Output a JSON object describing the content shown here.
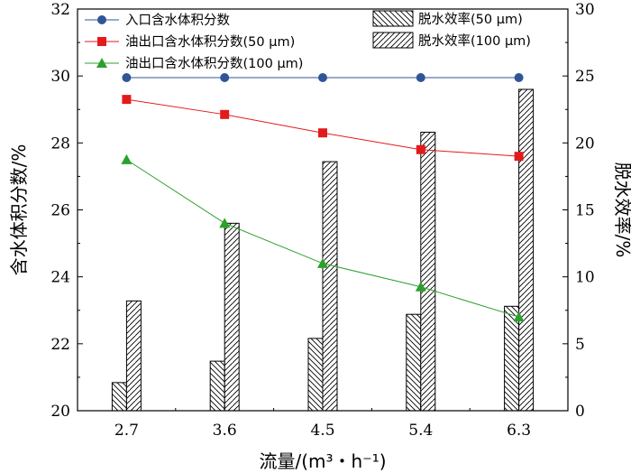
{
  "chart_data": {
    "type": "bar",
    "categories": [
      "2.7",
      "3.6",
      "4.5",
      "5.4",
      "6.3"
    ],
    "xlabel": "流量/(m³・h⁻¹)",
    "ylabel": "含水体积分数/%",
    "y2label": "脱水效率/%",
    "ylim": [
      20,
      32
    ],
    "y2lim": [
      0,
      30
    ],
    "yticks": [
      "20",
      "22",
      "24",
      "26",
      "28",
      "30",
      "32"
    ],
    "y2ticks": [
      "0",
      "5",
      "10",
      "15",
      "20",
      "25",
      "30"
    ],
    "grid": false,
    "legend_position": "top",
    "line_series": [
      {
        "name": "入口含水体积分数",
        "axis": "left",
        "color": "#2f5597",
        "marker": "circle",
        "values": [
          29.95,
          29.95,
          29.95,
          29.95,
          29.95
        ]
      },
      {
        "name": "油出口含水体积分数(50 μm)",
        "axis": "left",
        "color": "#e31a1c",
        "marker": "square",
        "values": [
          29.3,
          28.85,
          28.3,
          27.8,
          27.6
        ]
      },
      {
        "name": "油出口含水体积分数(100 μm)",
        "axis": "left",
        "color": "#2ca02c",
        "marker": "triangle",
        "values": [
          27.5,
          25.6,
          24.4,
          23.7,
          22.8
        ]
      }
    ],
    "bar_series": [
      {
        "name": "脱水效率(50 μm)",
        "axis": "right",
        "pattern": "backslash",
        "values": [
          2.1,
          3.7,
          5.4,
          7.2,
          7.8
        ]
      },
      {
        "name": "脱水效率(100 μm)",
        "axis": "right",
        "pattern": "slash",
        "values": [
          8.2,
          14.0,
          18.6,
          20.8,
          24.0
        ]
      }
    ]
  }
}
